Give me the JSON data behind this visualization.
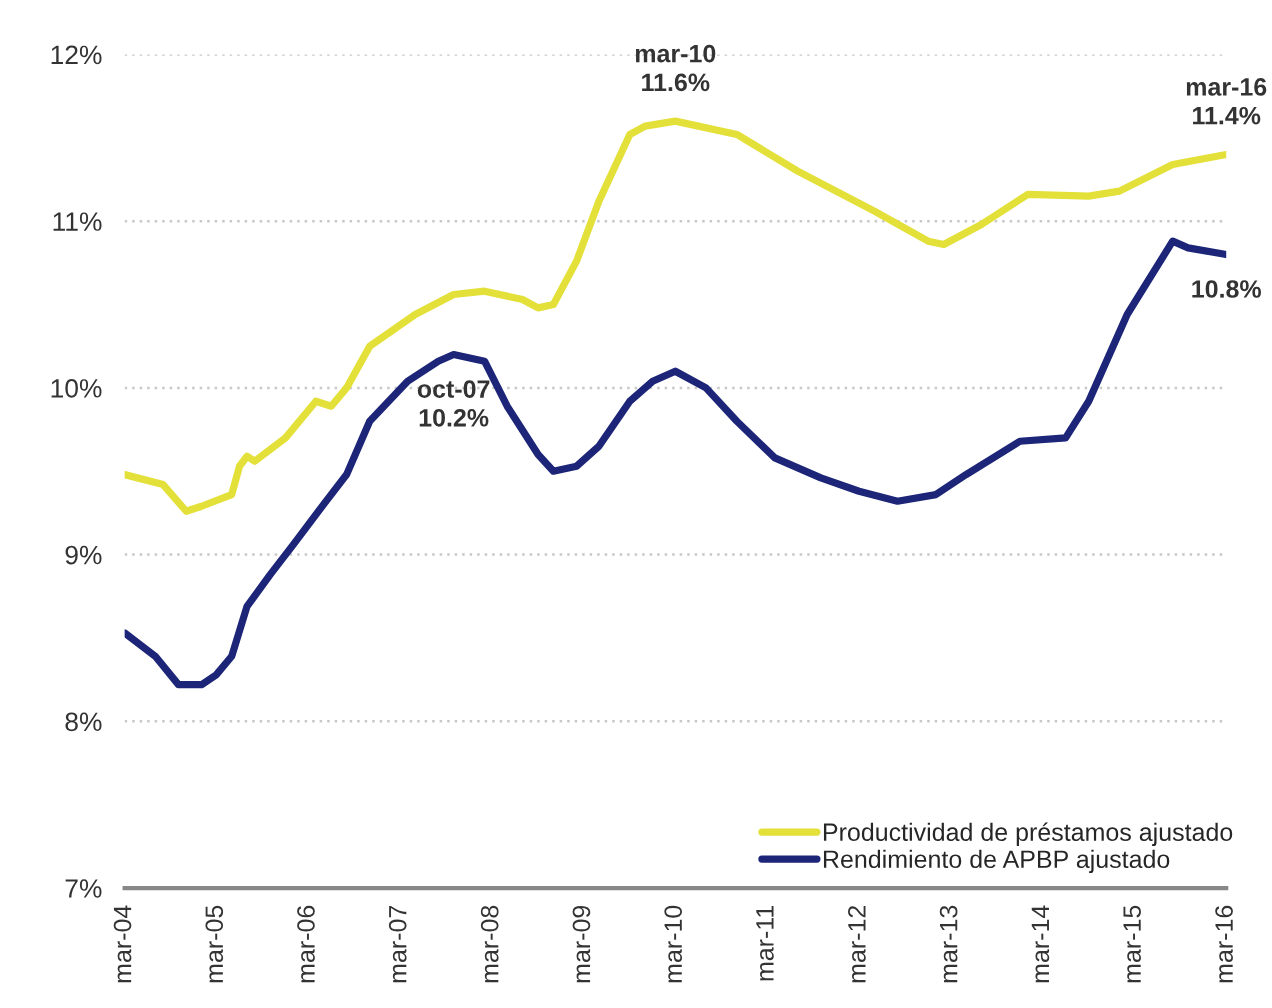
{
  "chart_data": {
    "type": "line",
    "series": [
      {
        "name": "Productividad de préstamos ajustado",
        "color": "#e4e03a",
        "x": [
          "2004-03",
          "2004-08",
          "2004-11",
          "2005-01",
          "2005-05",
          "2005-06",
          "2005-07",
          "2005-08",
          "2005-12",
          "2006-04",
          "2006-06",
          "2006-08",
          "2006-11",
          "2007-05",
          "2007-10",
          "2008-02",
          "2008-07",
          "2008-09",
          "2008-11",
          "2009-02",
          "2009-05",
          "2009-09",
          "2009-11",
          "2010-03",
          "2010-11",
          "2011-07",
          "2012-05",
          "2012-12",
          "2013-02",
          "2013-07",
          "2014-01",
          "2014-09",
          "2015-01",
          "2015-08",
          "2016-03"
        ],
        "values": [
          9.48,
          9.42,
          9.26,
          9.29,
          9.36,
          9.53,
          9.59,
          9.56,
          9.7,
          9.92,
          9.89,
          10.0,
          10.25,
          10.44,
          10.56,
          10.58,
          10.53,
          10.48,
          10.5,
          10.76,
          11.12,
          11.52,
          11.57,
          11.6,
          11.52,
          11.3,
          11.06,
          10.88,
          10.86,
          10.98,
          11.16,
          11.15,
          11.18,
          11.34,
          11.4
        ]
      },
      {
        "name": "Rendimiento de APBP ajustado",
        "color": "#1c2577",
        "x": [
          "2004-03",
          "2004-07",
          "2004-10",
          "2005-01",
          "2005-03",
          "2005-05",
          "2005-07",
          "2005-10",
          "2006-01",
          "2006-05",
          "2006-08",
          "2006-11",
          "2007-04",
          "2007-08",
          "2007-10",
          "2008-02",
          "2008-05",
          "2008-09",
          "2008-11",
          "2009-02",
          "2009-05",
          "2009-09",
          "2009-12",
          "2010-03",
          "2010-07",
          "2010-11",
          "2011-04",
          "2011-10",
          "2012-03",
          "2012-08",
          "2013-01",
          "2013-05",
          "2013-12",
          "2014-06",
          "2014-09",
          "2015-02",
          "2015-08",
          "2015-10",
          "2016-03"
        ],
        "values": [
          8.53,
          8.39,
          8.22,
          8.22,
          8.28,
          8.39,
          8.69,
          8.88,
          9.06,
          9.3,
          9.48,
          9.8,
          10.04,
          10.16,
          10.2,
          10.16,
          9.89,
          9.6,
          9.5,
          9.53,
          9.65,
          9.92,
          10.04,
          10.1,
          10.0,
          9.8,
          9.58,
          9.46,
          9.38,
          9.32,
          9.36,
          9.48,
          9.68,
          9.7,
          9.92,
          10.44,
          10.88,
          10.84,
          10.8
        ]
      }
    ],
    "xlim": [
      "2004-03",
      "2016-03"
    ],
    "xticks": [
      {
        "value": "2004-03",
        "label": "mar-04"
      },
      {
        "value": "2005-03",
        "label": "mar-05"
      },
      {
        "value": "2006-03",
        "label": "mar-06"
      },
      {
        "value": "2007-03",
        "label": "mar-07"
      },
      {
        "value": "2008-03",
        "label": "mar-08"
      },
      {
        "value": "2009-03",
        "label": "mar-09"
      },
      {
        "value": "2010-03",
        "label": "mar-10"
      },
      {
        "value": "2011-03",
        "label": "mar-11"
      },
      {
        "value": "2012-03",
        "label": "mar-12"
      },
      {
        "value": "2013-03",
        "label": "mar-13"
      },
      {
        "value": "2014-03",
        "label": "mar-14"
      },
      {
        "value": "2015-03",
        "label": "mar-15"
      },
      {
        "value": "2016-03",
        "label": "mar-16"
      }
    ],
    "ylim": [
      7,
      12
    ],
    "yticks": [
      {
        "value": 7,
        "label": "7%"
      },
      {
        "value": 8,
        "label": "8%"
      },
      {
        "value": 9,
        "label": "9%"
      },
      {
        "value": 10,
        "label": "10%"
      },
      {
        "value": 11,
        "label": "11%"
      },
      {
        "value": 12,
        "label": "12%"
      }
    ],
    "annotations": [
      {
        "text": "mar-10\n11.6%",
        "x": "2010-03",
        "y": 11.6
      },
      {
        "text": "oct-07\n10.2%",
        "x": "2007-10",
        "y": 10.2
      },
      {
        "text": "mar-16\n11.4%",
        "x": "2016-03",
        "y": 11.4
      },
      {
        "text": "10.8%",
        "x": "2016-03",
        "y": 10.8
      }
    ],
    "grid": "y",
    "legend": "bottom right",
    "line_style": "solid",
    "marker": "none"
  }
}
